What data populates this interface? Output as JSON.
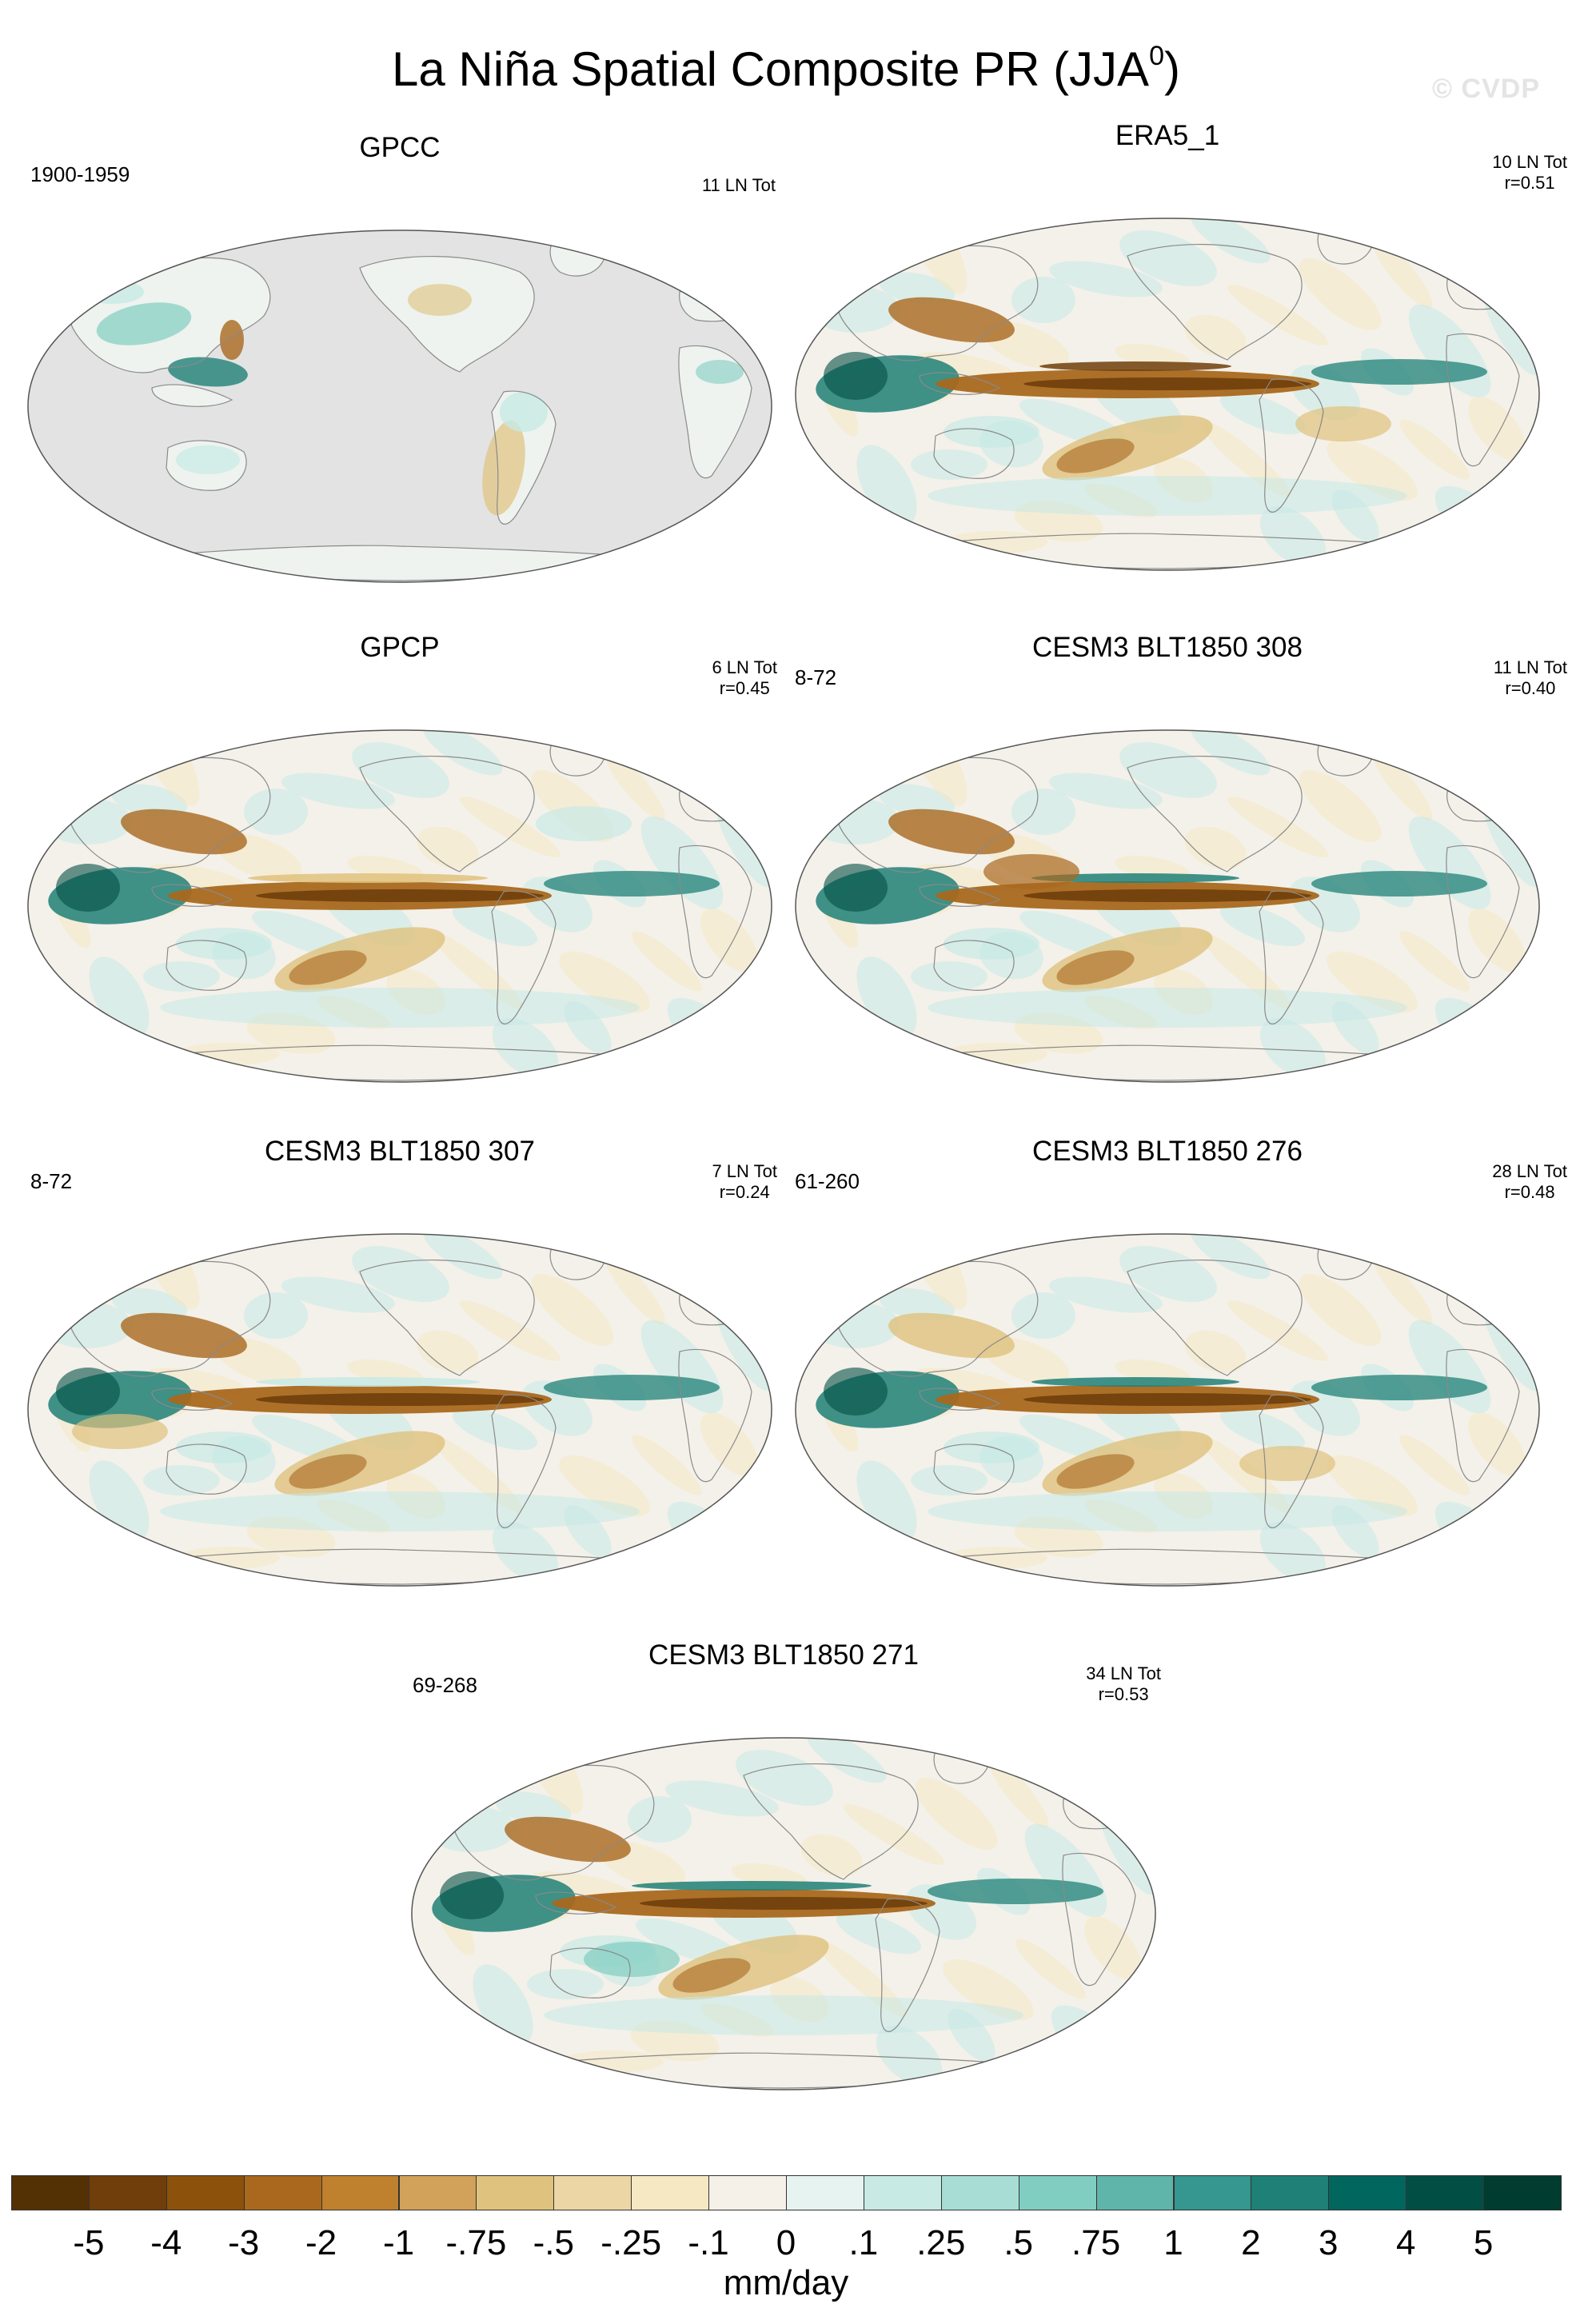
{
  "figure": {
    "title_main": "La Niña Spatial Composite PR (JJA",
    "title_sup": "0",
    "title_end": ")",
    "watermark": "© CVDP"
  },
  "panels": [
    {
      "id": "gpcc",
      "title": "GPCC",
      "years": "1900-1959",
      "count": "11 LN Tot",
      "corr": "",
      "land_only": true
    },
    {
      "id": "era5",
      "title": "ERA5_1",
      "years": "",
      "count": "10 LN Tot",
      "corr": "r=0.51",
      "land_only": false
    },
    {
      "id": "gpcp",
      "title": "GPCP",
      "years": "",
      "count": "6 LN Tot",
      "corr": "r=0.45",
      "land_only": false
    },
    {
      "id": "cesm308",
      "title": "CESM3 BLT1850 308",
      "years": "8-72",
      "count": "11 LN Tot",
      "corr": "r=0.40",
      "land_only": false
    },
    {
      "id": "cesm307",
      "title": "CESM3 BLT1850 307",
      "years": "8-72",
      "count": "7 LN Tot",
      "corr": "r=0.24",
      "land_only": false
    },
    {
      "id": "cesm276",
      "title": "CESM3 BLT1850 276",
      "years": "61-260",
      "count": "28 LN Tot",
      "corr": "r=0.48",
      "land_only": false
    },
    {
      "id": "cesm271",
      "title": "CESM3 BLT1850 271",
      "years": "69-268",
      "count": "34 LN Tot",
      "corr": "r=0.53",
      "land_only": false
    }
  ],
  "colorbar": {
    "unit": "mm/day",
    "tick_labels": [
      "-5",
      "-4",
      "-3",
      "-2",
      "-1",
      "-.75",
      "-.5",
      "-.25",
      "-.1",
      "0",
      ".1",
      ".25",
      ".5",
      ".75",
      "1",
      "2",
      "3",
      "4",
      "5"
    ],
    "colors": [
      "#543005",
      "#6f3e0b",
      "#8c510a",
      "#a9681e",
      "#bf812d",
      "#d2a25a",
      "#dfc27d",
      "#ecd6a6",
      "#f6e8c3",
      "#f5f1e8",
      "#e6f3f1",
      "#c7eae5",
      "#a8ddd5",
      "#80cdc1",
      "#5fb5aa",
      "#35978f",
      "#1f8077",
      "#01665e",
      "#014f44",
      "#003c30"
    ]
  },
  "map_colors": {
    "ocean_background": "#f4f1ea",
    "land_mask": "#e3e3e3",
    "coastline": "#8a8a8a",
    "outline": "#555555"
  }
}
